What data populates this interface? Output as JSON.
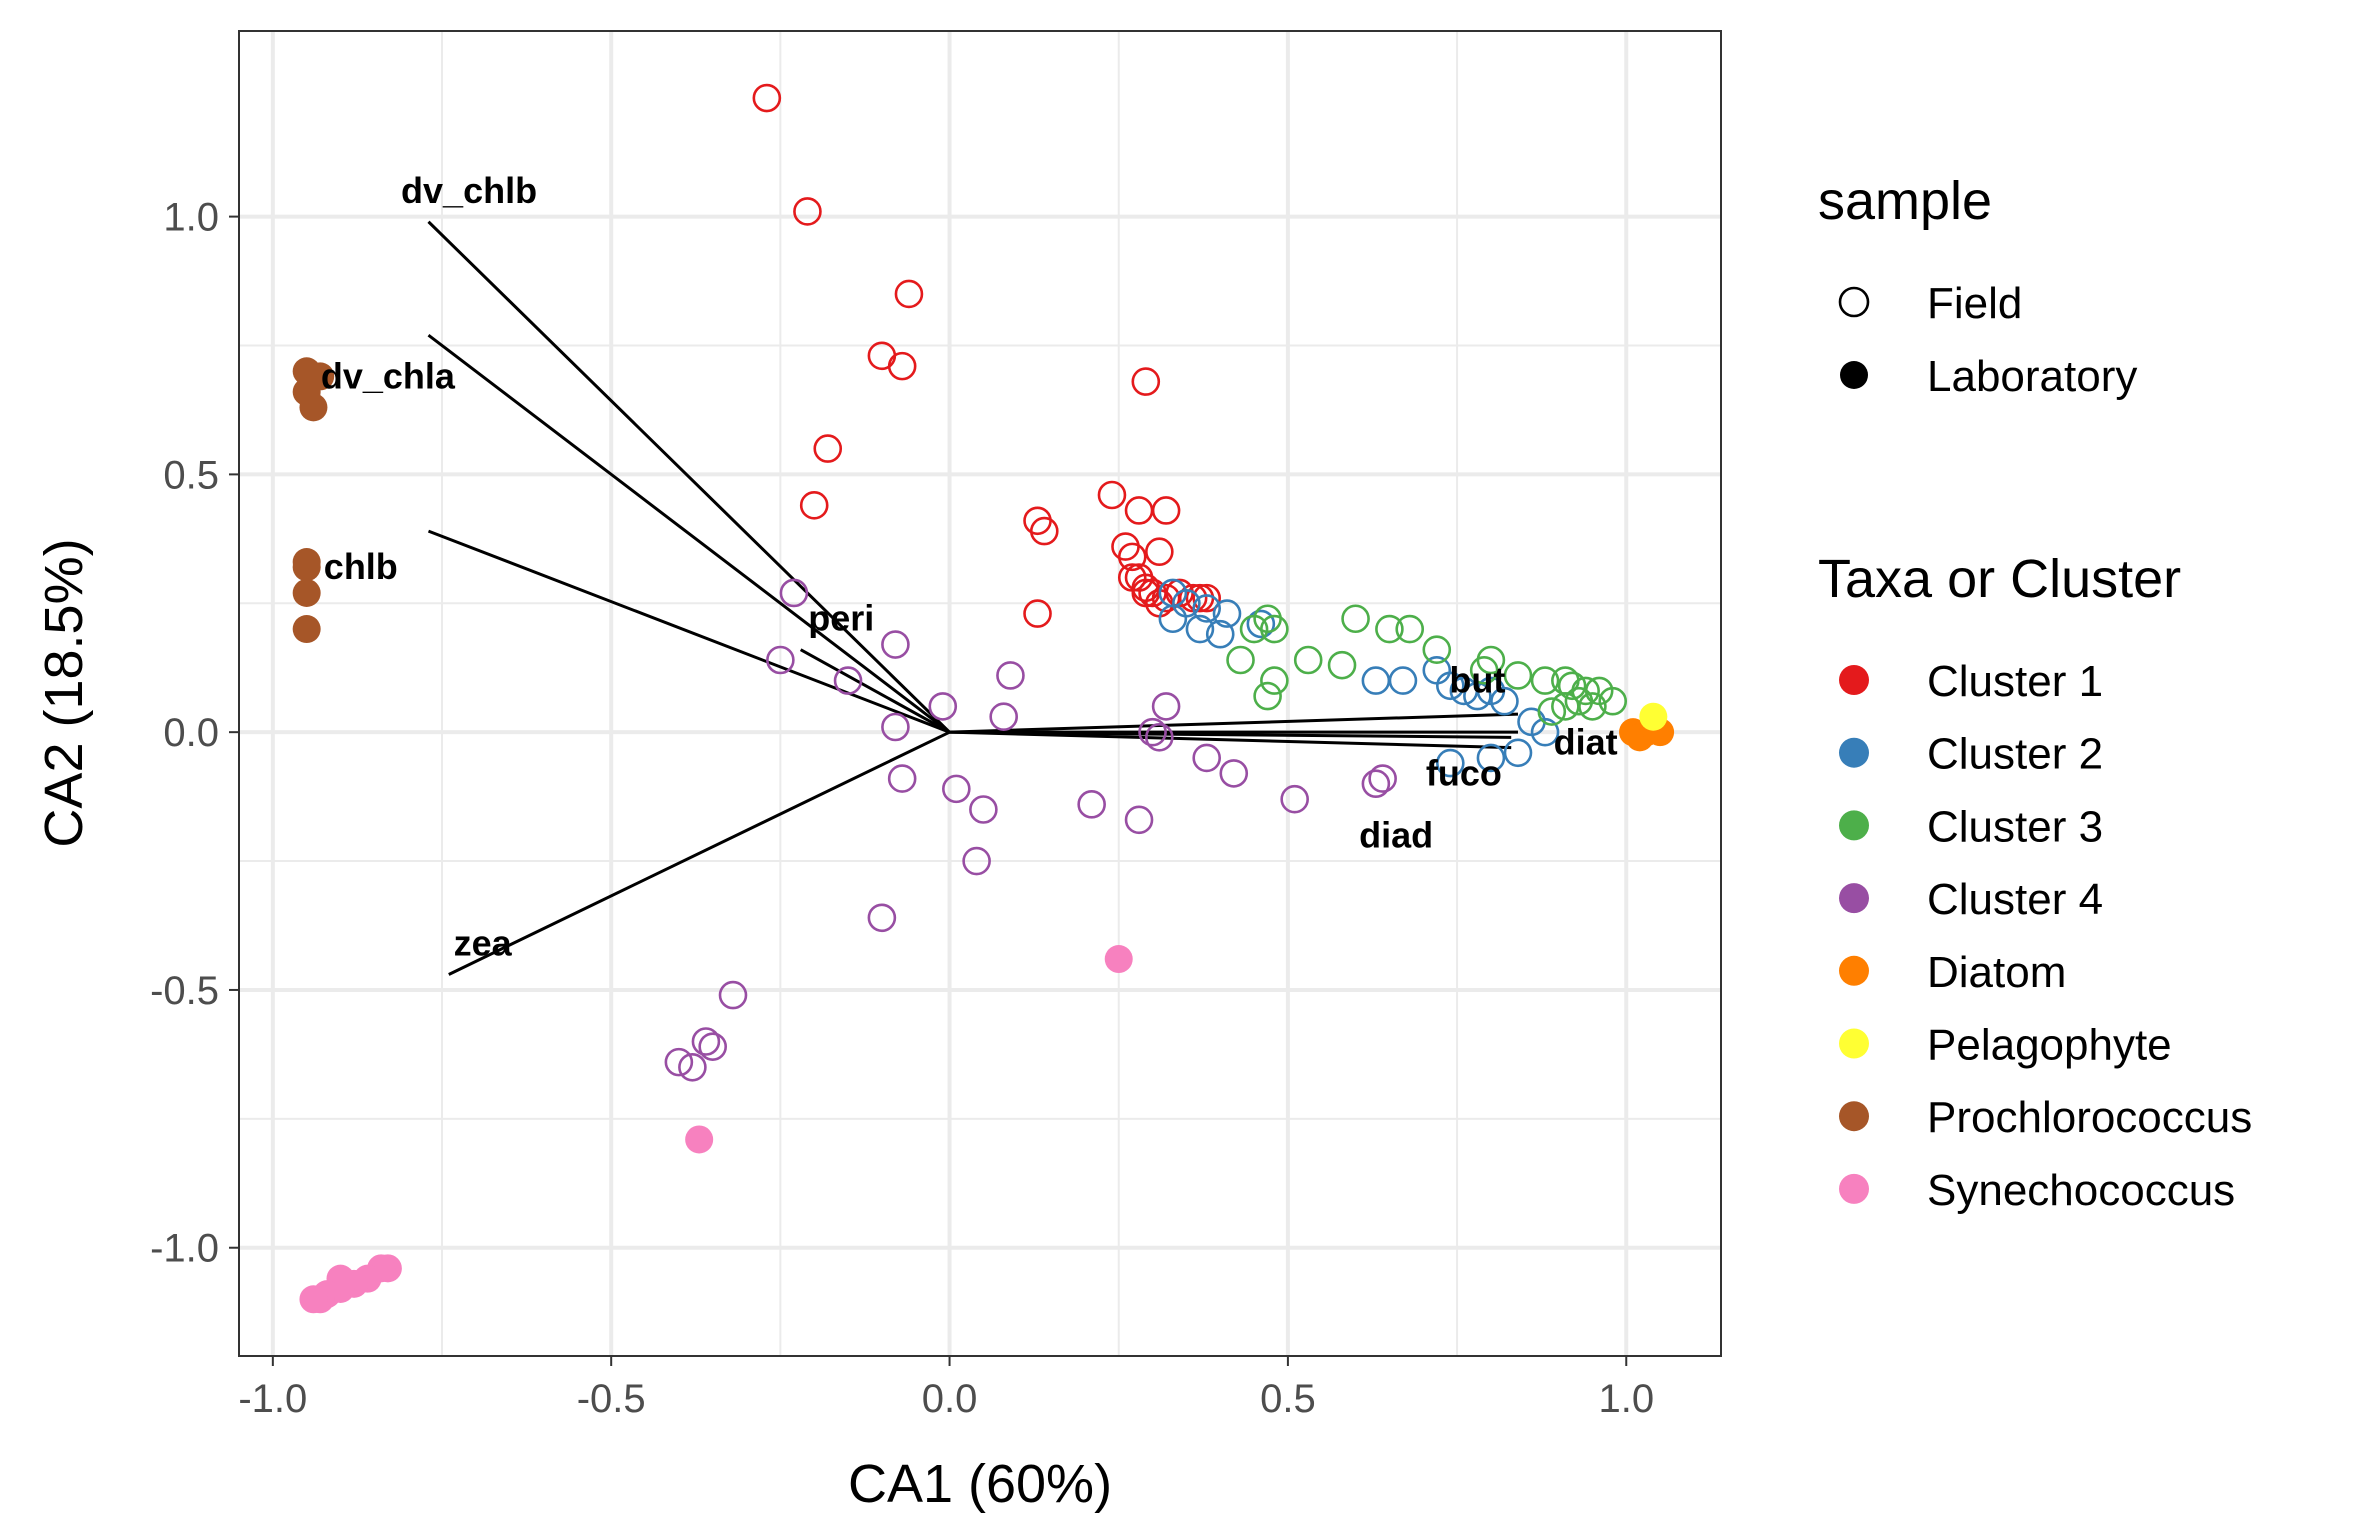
{
  "chart_data": {
    "type": "scatter",
    "subtype": "correspondence-analysis biplot",
    "xlabel": "CA1 (60%)",
    "ylabel": "CA2 (18.5%)",
    "xlim": [
      -1.05,
      1.14
    ],
    "ylim": [
      -1.21,
      1.36
    ],
    "xticks": [
      -1.0,
      -0.5,
      0.0,
      0.5,
      1.0
    ],
    "xtick_labels": [
      "-1.0",
      "-0.5",
      "0.0",
      "0.5",
      "1.0"
    ],
    "yticks": [
      -1.0,
      -0.5,
      0.0,
      0.5,
      1.0
    ],
    "ytick_labels": [
      "-1.0",
      "-0.5",
      "0.0",
      "0.5",
      "1.0"
    ],
    "grid": true,
    "legend_placement": "right",
    "legends": {
      "sample": {
        "title": "sample",
        "entries": [
          {
            "label": "Field",
            "shape": "open-circle"
          },
          {
            "label": "Laboratory",
            "shape": "filled-circle"
          }
        ]
      },
      "taxa": {
        "title": "Taxa or Cluster",
        "entries": [
          {
            "label": "Cluster 1",
            "color": "#E41A1C"
          },
          {
            "label": "Cluster 2",
            "color": "#377EB8"
          },
          {
            "label": "Cluster 3",
            "color": "#4DAF4A"
          },
          {
            "label": "Cluster 4",
            "color": "#984EA3"
          },
          {
            "label": "Diatom",
            "color": "#FF7F00"
          },
          {
            "label": "Pelagophyte",
            "color": "#FFFF33"
          },
          {
            "label": "Prochlorococcus",
            "color": "#A65628"
          },
          {
            "label": "Synechococcus",
            "color": "#F781BF"
          }
        ]
      }
    },
    "arrows": [
      {
        "label": "dv_chlb",
        "x": -0.77,
        "y": 0.99,
        "label_x": -0.71,
        "label_y": 1.05
      },
      {
        "label": "dv_chla",
        "x": -0.77,
        "y": 0.77,
        "label_x": -0.83,
        "label_y": 0.69
      },
      {
        "label": "chlb",
        "x": -0.77,
        "y": 0.39,
        "label_x": -0.87,
        "label_y": 0.32
      },
      {
        "label": "peri",
        "x": -0.22,
        "y": 0.16,
        "label_x": -0.16,
        "label_y": 0.22
      },
      {
        "label": "zea",
        "x": -0.74,
        "y": -0.47,
        "label_x": -0.69,
        "label_y": -0.41
      },
      {
        "label": "but",
        "x": 0.84,
        "y": 0.035,
        "label_x": 0.78,
        "label_y": 0.1
      },
      {
        "label": "diat",
        "x": 0.84,
        "y": 0.0,
        "label_x": 0.94,
        "label_y": -0.02
      },
      {
        "label": "fuco",
        "x": 0.83,
        "y": -0.01,
        "label_x": 0.76,
        "label_y": -0.08
      },
      {
        "label": "diad",
        "x": 0.83,
        "y": -0.03,
        "label_x": 0.66,
        "label_y": -0.2
      }
    ],
    "series": [
      {
        "name": "Cluster 1",
        "color": "#E41A1C",
        "filled": false,
        "points": [
          [
            -0.27,
            1.23
          ],
          [
            -0.21,
            1.01
          ],
          [
            -0.06,
            0.85
          ],
          [
            -0.1,
            0.73
          ],
          [
            -0.07,
            0.71
          ],
          [
            0.29,
            0.68
          ],
          [
            -0.18,
            0.55
          ],
          [
            -0.2,
            0.44
          ],
          [
            0.24,
            0.46
          ],
          [
            0.28,
            0.43
          ],
          [
            0.32,
            0.43
          ],
          [
            0.13,
            0.41
          ],
          [
            0.14,
            0.39
          ],
          [
            0.26,
            0.36
          ],
          [
            0.27,
            0.34
          ],
          [
            0.31,
            0.35
          ],
          [
            0.27,
            0.3
          ],
          [
            0.28,
            0.3
          ],
          [
            0.29,
            0.28
          ],
          [
            0.3,
            0.27
          ],
          [
            0.32,
            0.26
          ],
          [
            0.29,
            0.27
          ],
          [
            0.31,
            0.25
          ],
          [
            0.13,
            0.23
          ],
          [
            0.34,
            0.27
          ],
          [
            0.36,
            0.26
          ],
          [
            0.37,
            0.26
          ],
          [
            0.38,
            0.26
          ]
        ]
      },
      {
        "name": "Cluster 2",
        "color": "#377EB8",
        "filled": false,
        "points": [
          [
            0.33,
            0.27
          ],
          [
            0.35,
            0.25
          ],
          [
            0.38,
            0.24
          ],
          [
            0.41,
            0.23
          ],
          [
            0.33,
            0.22
          ],
          [
            0.37,
            0.2
          ],
          [
            0.4,
            0.19
          ],
          [
            0.46,
            0.21
          ],
          [
            0.63,
            0.1
          ],
          [
            0.67,
            0.1
          ],
          [
            0.72,
            0.12
          ],
          [
            0.74,
            0.09
          ],
          [
            0.76,
            0.08
          ],
          [
            0.78,
            0.07
          ],
          [
            0.8,
            0.08
          ],
          [
            0.82,
            0.06
          ],
          [
            0.86,
            0.02
          ],
          [
            0.88,
            0.0
          ],
          [
            0.74,
            -0.06
          ],
          [
            0.8,
            -0.05
          ],
          [
            0.84,
            -0.04
          ]
        ]
      },
      {
        "name": "Cluster 3",
        "color": "#4DAF4A",
        "filled": false,
        "points": [
          [
            0.47,
            0.22
          ],
          [
            0.48,
            0.2
          ],
          [
            0.45,
            0.2
          ],
          [
            0.6,
            0.22
          ],
          [
            0.65,
            0.2
          ],
          [
            0.68,
            0.2
          ],
          [
            0.72,
            0.16
          ],
          [
            0.8,
            0.14
          ],
          [
            0.79,
            0.12
          ],
          [
            0.84,
            0.11
          ],
          [
            0.88,
            0.1
          ],
          [
            0.91,
            0.1
          ],
          [
            0.92,
            0.09
          ],
          [
            0.94,
            0.08
          ],
          [
            0.96,
            0.08
          ],
          [
            0.98,
            0.06
          ],
          [
            0.93,
            0.06
          ],
          [
            0.95,
            0.05
          ],
          [
            0.91,
            0.05
          ],
          [
            0.89,
            0.04
          ],
          [
            0.43,
            0.14
          ],
          [
            0.53,
            0.14
          ],
          [
            0.58,
            0.13
          ],
          [
            0.48,
            0.1
          ],
          [
            0.47,
            0.07
          ]
        ]
      },
      {
        "name": "Cluster 4",
        "color": "#984EA3",
        "filled": false,
        "points": [
          [
            -0.23,
            0.27
          ],
          [
            -0.08,
            0.17
          ],
          [
            -0.25,
            0.14
          ],
          [
            -0.15,
            0.1
          ],
          [
            0.09,
            0.11
          ],
          [
            0.32,
            0.05
          ],
          [
            -0.01,
            0.05
          ],
          [
            0.08,
            0.03
          ],
          [
            -0.08,
            0.01
          ],
          [
            0.3,
            0.0
          ],
          [
            0.31,
            -0.01
          ],
          [
            0.38,
            -0.05
          ],
          [
            0.42,
            -0.08
          ],
          [
            -0.07,
            -0.09
          ],
          [
            0.01,
            -0.11
          ],
          [
            0.05,
            -0.15
          ],
          [
            0.21,
            -0.14
          ],
          [
            0.28,
            -0.17
          ],
          [
            0.51,
            -0.13
          ],
          [
            0.64,
            -0.09
          ],
          [
            0.63,
            -0.1
          ],
          [
            0.04,
            -0.25
          ],
          [
            -0.1,
            -0.36
          ],
          [
            -0.32,
            -0.51
          ],
          [
            -0.36,
            -0.6
          ],
          [
            -0.35,
            -0.61
          ],
          [
            -0.4,
            -0.64
          ],
          [
            -0.38,
            -0.65
          ]
        ]
      },
      {
        "name": "Diatom",
        "color": "#FF7F00",
        "filled": true,
        "points": [
          [
            1.01,
            0.0
          ],
          [
            1.03,
            0.0
          ],
          [
            1.05,
            0.0
          ],
          [
            1.02,
            -0.01
          ],
          [
            1.04,
            0.01
          ]
        ]
      },
      {
        "name": "Pelagophyte",
        "color": "#FFFF33",
        "filled": true,
        "points": [
          [
            1.04,
            0.03
          ]
        ]
      },
      {
        "name": "Prochlorococcus",
        "color": "#A65628",
        "filled": true,
        "points": [
          [
            -0.95,
            0.7
          ],
          [
            -0.93,
            0.69
          ],
          [
            -0.95,
            0.66
          ],
          [
            -0.94,
            0.63
          ],
          [
            -0.95,
            0.33
          ],
          [
            -0.95,
            0.32
          ],
          [
            -0.95,
            0.27
          ],
          [
            -0.95,
            0.2
          ]
        ]
      },
      {
        "name": "Synechococcus",
        "color": "#F781BF",
        "filled": true,
        "points": [
          [
            0.25,
            -0.44
          ],
          [
            -0.37,
            -0.79
          ],
          [
            -0.83,
            -1.04
          ],
          [
            -0.84,
            -1.04
          ],
          [
            -0.86,
            -1.06
          ],
          [
            -0.88,
            -1.07
          ],
          [
            -0.9,
            -1.08
          ],
          [
            -0.9,
            -1.06
          ],
          [
            -0.92,
            -1.09
          ],
          [
            -0.93,
            -1.1
          ],
          [
            -0.94,
            -1.1
          ]
        ]
      }
    ]
  }
}
